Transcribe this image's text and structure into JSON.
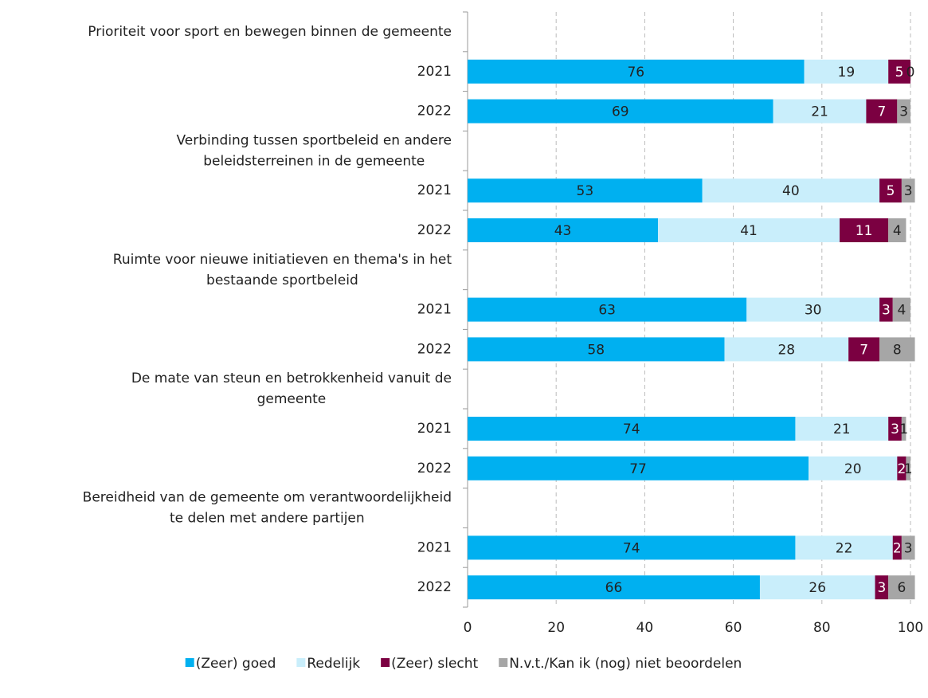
{
  "chart_data": {
    "type": "stacked_bar_horizontal",
    "categories": [
      "Prioriteit voor sport en bewegen binnen de gemeente",
      "2021",
      "2022",
      "Verbinding tussen sportbeleid en andere\nbeleidsterreinen in de gemeente",
      "2021",
      "2022",
      "Ruimte voor nieuwe initiatieven en thema's in het\nbestaande sportbeleid",
      "2021",
      "2022",
      "De mate van steun en betrokkenheid vanuit de\ngemeente",
      "2021",
      "2022",
      "Bereidheid van de gemeente om verantwoordelijkheid\nte delen met andere partijen",
      "2021",
      "2022"
    ],
    "series": [
      {
        "name": "(Zeer) goed",
        "color": "#00b0f0",
        "values": [
          null,
          76,
          69,
          null,
          53,
          43,
          null,
          63,
          58,
          null,
          74,
          77,
          null,
          74,
          66
        ]
      },
      {
        "name": "Redelijk",
        "color": "#c9eefb",
        "values": [
          null,
          19,
          21,
          null,
          40,
          41,
          null,
          30,
          28,
          null,
          21,
          20,
          null,
          22,
          26
        ]
      },
      {
        "name": "(Zeer) slecht",
        "color": "#7b0041",
        "values": [
          null,
          5,
          7,
          null,
          5,
          11,
          null,
          3,
          7,
          null,
          3,
          2,
          null,
          2,
          3
        ]
      },
      {
        "name": "N.v.t./Kan ik (nog) niet beoordelen",
        "color": "#a6a6a6",
        "values": [
          null,
          0,
          3,
          null,
          3,
          4,
          null,
          4,
          8,
          null,
          1,
          1,
          null,
          3,
          6
        ]
      }
    ],
    "xlim": [
      0,
      100
    ],
    "xticks": [
      0,
      20,
      40,
      60,
      80,
      100
    ],
    "grid": true,
    "legend": "bottom"
  }
}
